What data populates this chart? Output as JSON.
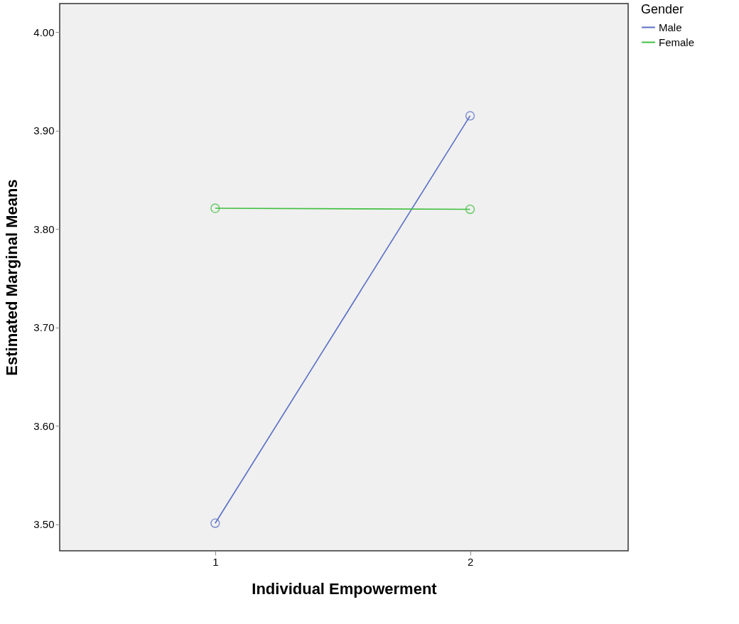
{
  "chart_data": {
    "type": "line",
    "xlabel": "Individual Empowerment",
    "ylabel": "Estimated Marginal Means",
    "legend_title": "Gender",
    "x": [
      1,
      2
    ],
    "xlim": [
      0.39,
      2.62
    ],
    "xticks": [
      {
        "value": 1,
        "label": "1"
      },
      {
        "value": 2,
        "label": "2"
      }
    ],
    "ylim": [
      3.473,
      4.029
    ],
    "yticks": [
      {
        "value": 3.5,
        "label": "3.50"
      },
      {
        "value": 3.6,
        "label": "3.60"
      },
      {
        "value": 3.7,
        "label": "3.70"
      },
      {
        "value": 3.8,
        "label": "3.80"
      },
      {
        "value": 3.9,
        "label": "3.90"
      },
      {
        "value": 4.0,
        "label": "4.00"
      }
    ],
    "series": [
      {
        "name": "Male",
        "color": "#5a6fc4",
        "values": [
          3.501,
          3.915
        ]
      },
      {
        "name": "Female",
        "color": "#3fbf3f",
        "values": [
          3.821,
          3.82
        ]
      }
    ],
    "marker": "circle",
    "line_style": "solid",
    "legend": "top right",
    "grid": false
  }
}
